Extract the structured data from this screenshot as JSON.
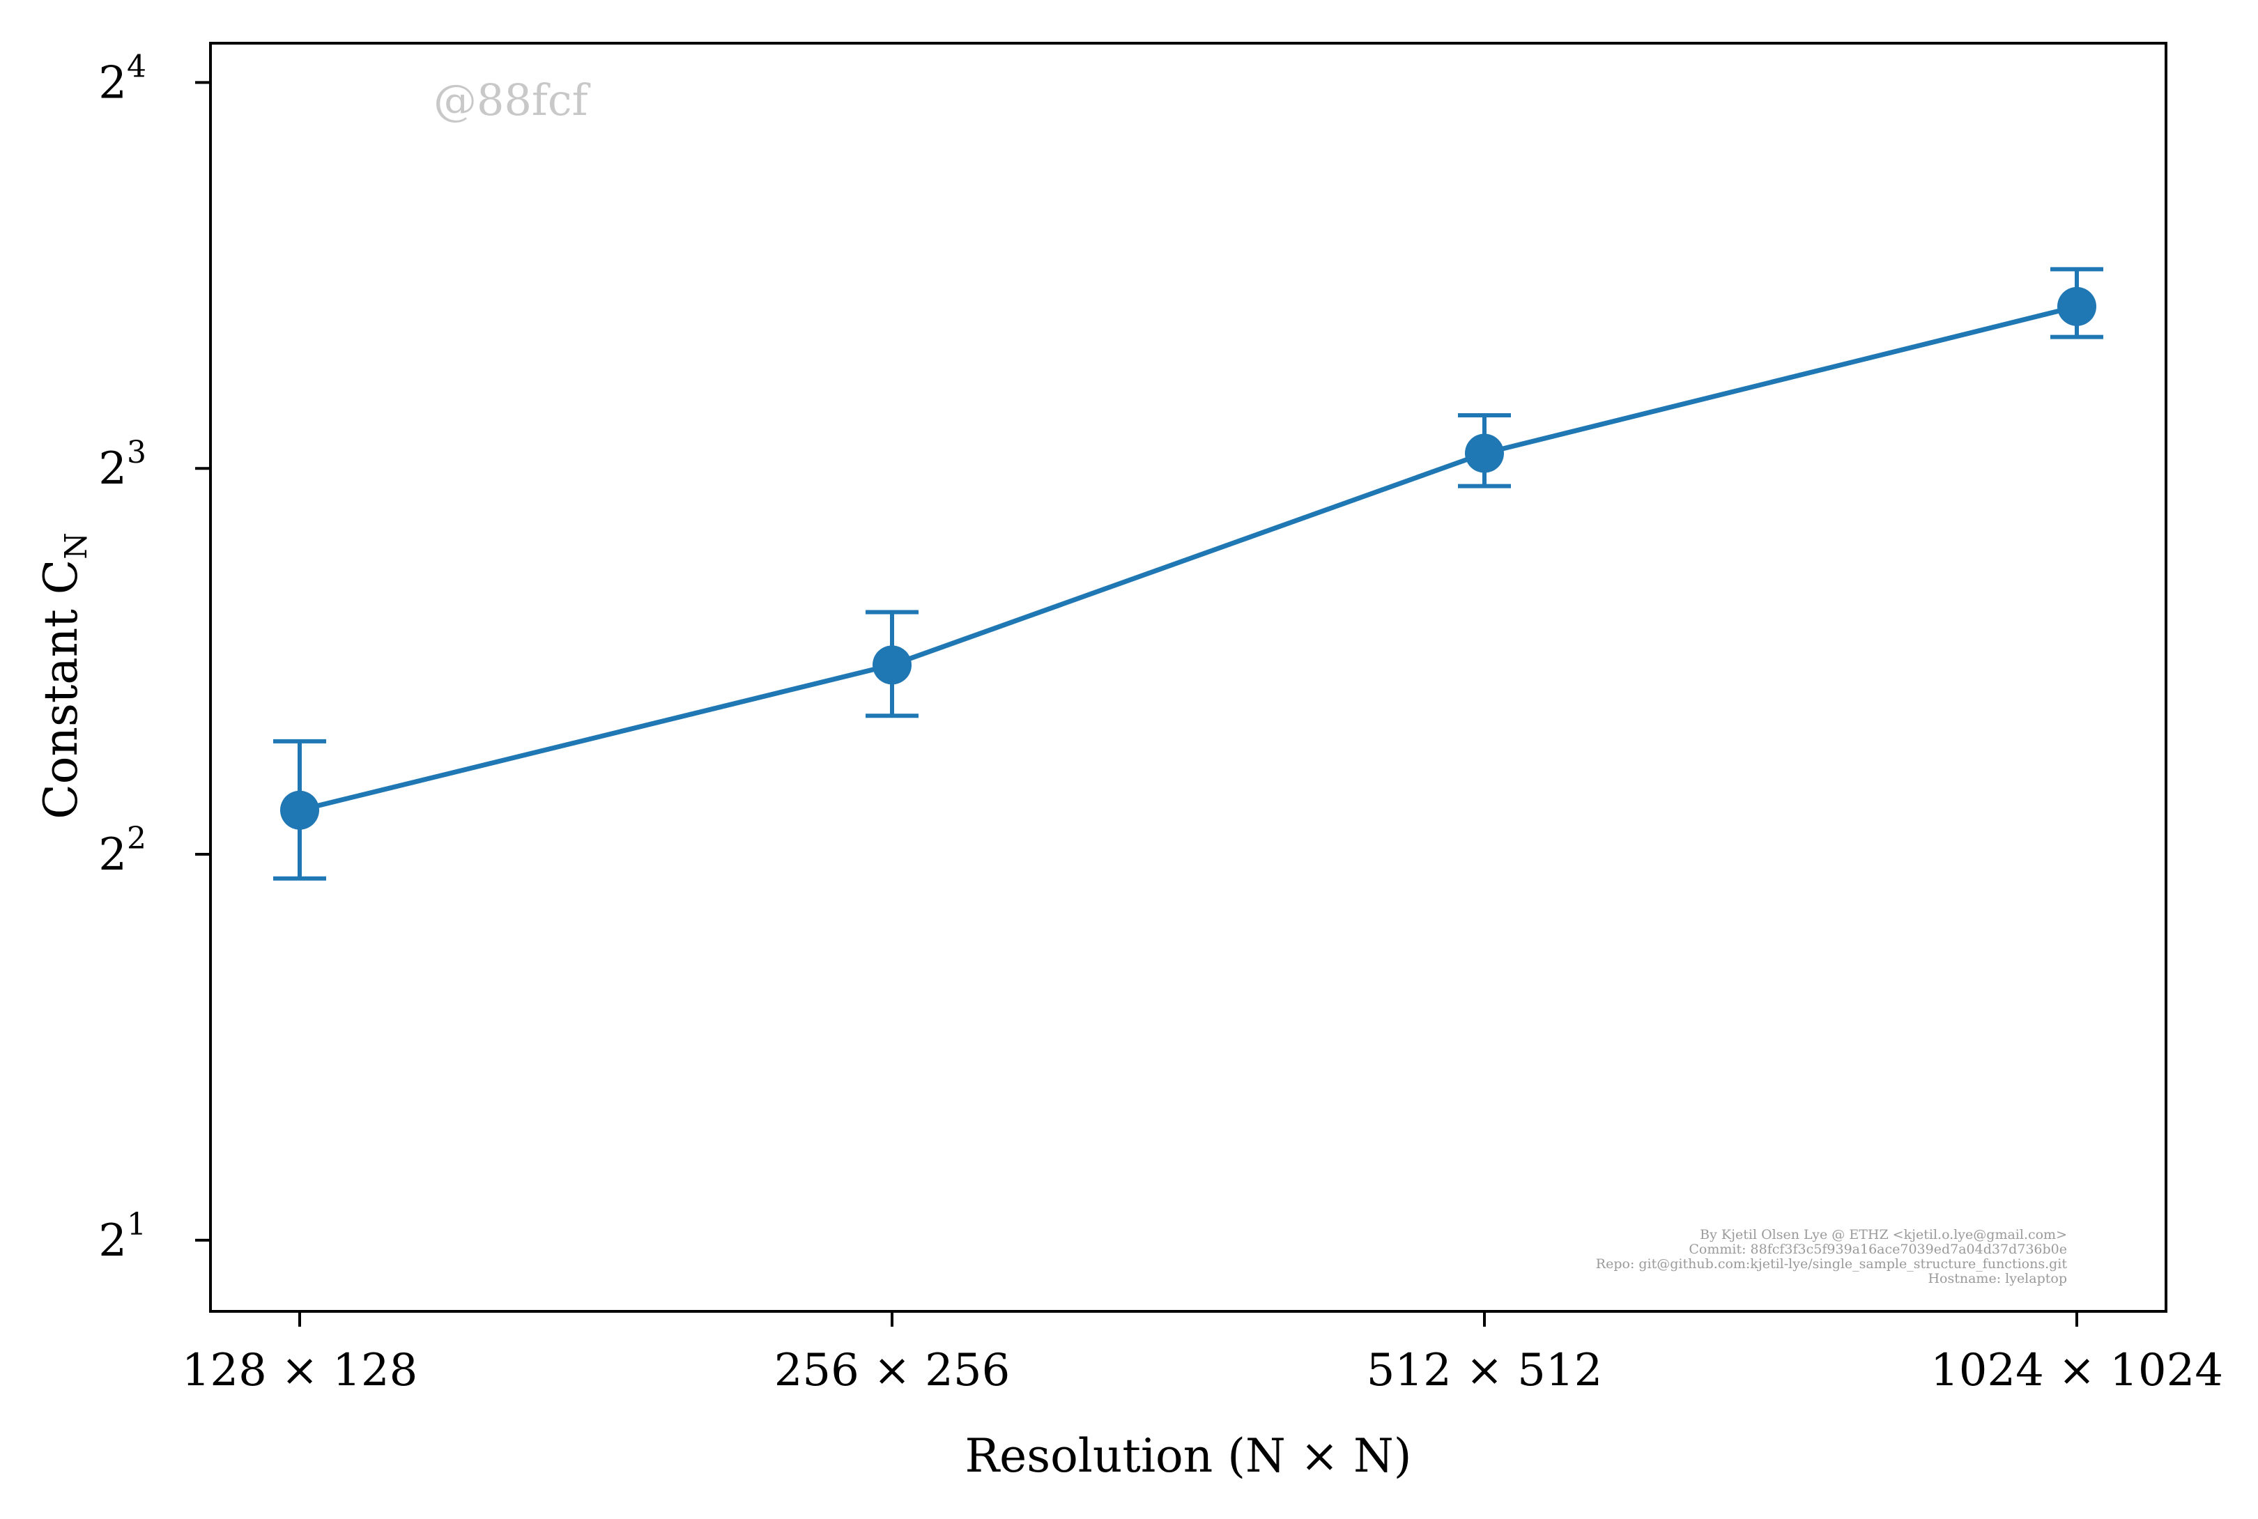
{
  "chart_data": {
    "type": "line",
    "categories": [
      "128 × 128",
      "256 × 256",
      "512 × 512",
      "1024 × 1024"
    ],
    "series": [
      {
        "values": [
          4.33,
          5.62,
          8.22,
          10.7
        ],
        "error_low": [
          3.83,
          5.13,
          7.75,
          10.13
        ],
        "error_high": [
          4.9,
          6.18,
          8.8,
          11.44
        ],
        "color": "#1f77b4"
      }
    ],
    "xlabel": "Resolution (N × N)",
    "ylabel": "Constant C",
    "ylabel_subscript": "N",
    "yscale": "log2",
    "ylim": [
      1.76,
      17.17
    ],
    "yticks": [
      {
        "base": "2",
        "exp": "1",
        "value": 2
      },
      {
        "base": "2",
        "exp": "2",
        "value": 4
      },
      {
        "base": "2",
        "exp": "3",
        "value": 8
      },
      {
        "base": "2",
        "exp": "4",
        "value": 16
      }
    ],
    "grid": false,
    "legend": "none",
    "watermark": "@88fcf",
    "credits": [
      "By Kjetil Olsen Lye @ ETHZ <kjetil.o.lye@gmail.com>",
      "Commit: 88fcf3f3c5f939a16ace7039ed7a04d37d736b0e",
      "Repo: git@github.com:kjetil-lye/single_sample_structure_functions.git",
      "Hostname: lyelaptop"
    ]
  }
}
